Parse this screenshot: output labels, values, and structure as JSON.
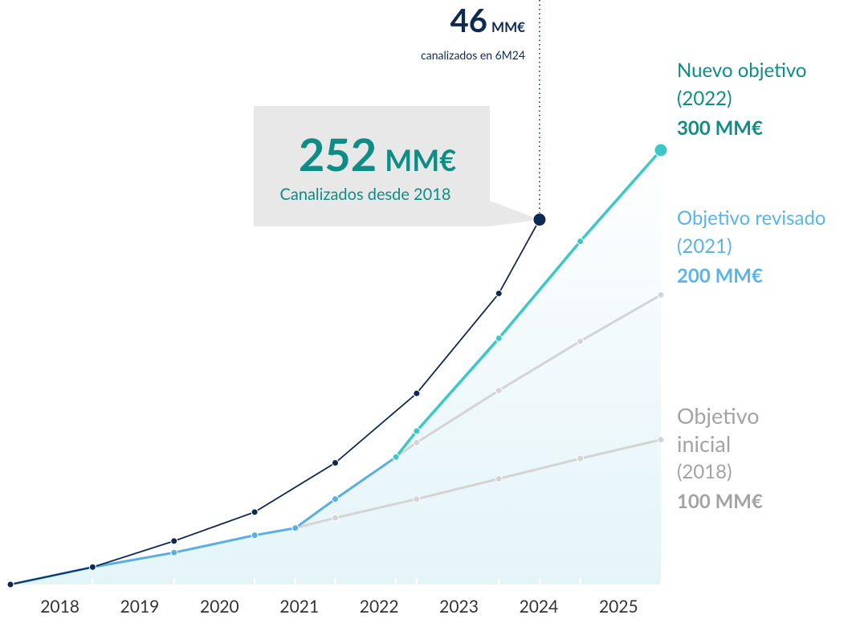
{
  "chart_data": {
    "type": "line",
    "xlim": [
      2017.38,
      2025.53
    ],
    "ylim": [
      0,
      300
    ],
    "xticks": [
      2018,
      2019,
      2020,
      2021,
      2022,
      2023,
      2024,
      2025
    ],
    "series": [
      {
        "color": "#0d2b52",
        "x": [
          2017.38,
          2018.41,
          2019.43,
          2020.44,
          2021.45,
          2022.47,
          2023.5,
          2024.01
        ],
        "values": [
          0,
          12,
          30,
          50,
          84,
          132,
          201,
          252
        ]
      },
      {
        "name": "Objetivo inicial",
        "period": "(2018)",
        "target_label": "100 MM€",
        "color": "#a3a3a3",
        "line_color": "#d4d4d4",
        "x": [
          2020.95,
          2021.45,
          2022.47,
          2023.5,
          2024.52,
          2025.53
        ],
        "values": [
          39,
          46,
          59,
          73,
          87,
          100
        ]
      },
      {
        "name": "Objetivo revisado",
        "period": "(2021)",
        "target_label": "200 MM€",
        "color": "#5ab4ec",
        "line_color": "#5aaee6",
        "future_color": "#d4d4d4",
        "future_from": 2022.21,
        "x": [
          2017.38,
          2018.41,
          2019.43,
          2020.44,
          2020.95,
          2021.45,
          2022.21,
          2022.47,
          2023.5,
          2024.52,
          2025.53
        ],
        "values": [
          0,
          12,
          22,
          34,
          39,
          59,
          88,
          98,
          134,
          168,
          200
        ]
      },
      {
        "name": "Nuevo objetivo",
        "period": "(2022)",
        "target_label": "300 MM€",
        "color": "#0e8c86",
        "line_color": "#3cc8c8",
        "x": [
          2022.21,
          2022.47,
          2023.5,
          2024.52,
          2025.53
        ],
        "values": [
          88,
          106,
          170,
          237,
          300
        ]
      }
    ],
    "annotations": [
      {
        "value": 252,
        "unit": "MM€",
        "text": "Canalizados desde 2018"
      },
      {
        "value": 46,
        "unit": "MM€",
        "text": "canalizados en 6M24"
      }
    ]
  }
}
